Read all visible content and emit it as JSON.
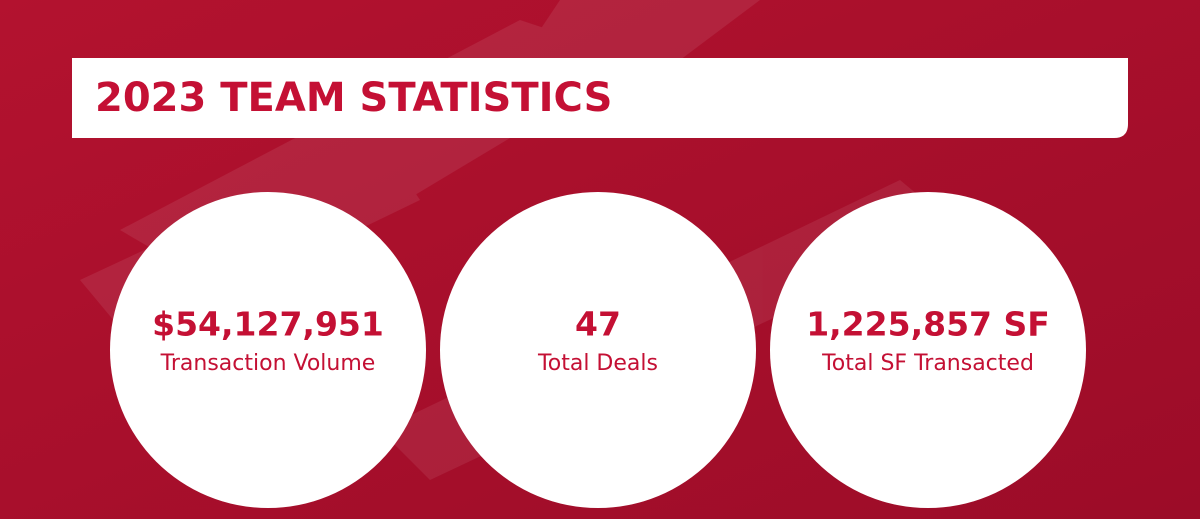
{
  "header": {
    "title": "2023 TEAM STATISTICS"
  },
  "stats": [
    {
      "value": "$54,127,951",
      "label": "Transaction Volume"
    },
    {
      "value": "47",
      "label": "Total Deals"
    },
    {
      "value": "1,225,857 SF",
      "label": "Total SF Transacted"
    }
  ]
}
